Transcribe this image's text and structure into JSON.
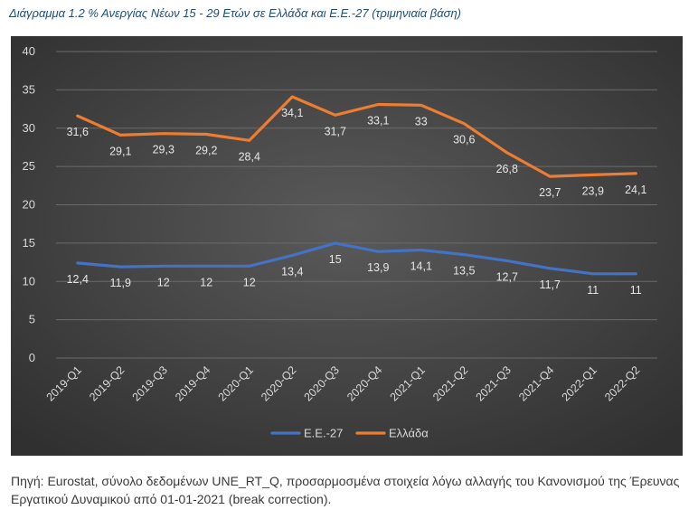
{
  "caption": "Διάγραμμα 1.2 % Ανεργίας Νέων 15 - 29 Ετών σε Ελλάδα και Ε.Ε.-27 (τριμηνιαία βάση)",
  "source_text": "Πηγή: Eurostat, σύνολο δεδομένων UNE_RT_Q, προσαρμοσμένα στοιχεία λόγω αλλαγής του Κανονισμού της Έρευνας Εργατικού Δυναμικού από 01-01-2021 (break correction).",
  "chart_data": {
    "type": "line",
    "categories": [
      "2019-Q1",
      "2019-Q2",
      "2019-Q3",
      "2019-Q4",
      "2020-Q1",
      "2020-Q2",
      "2020-Q3",
      "2020-Q4",
      "2021-Q1",
      "2021-Q2",
      "2021-Q3",
      "2021-Q4",
      "2022-Q1",
      "2022-Q2"
    ],
    "series": [
      {
        "name": "Ε.Ε.-27",
        "color": "#4472c4",
        "values": [
          12.4,
          11.9,
          12,
          12,
          12,
          13.4,
          15,
          13.9,
          14.1,
          13.5,
          12.7,
          11.7,
          11,
          11
        ],
        "labels": [
          "12,4",
          "11,9",
          "12",
          "12",
          "12",
          "13,4",
          "15",
          "13,9",
          "14,1",
          "13,5",
          "12,7",
          "11,7",
          "11",
          "11"
        ]
      },
      {
        "name": "Ελλάδα",
        "color": "#ed7d31",
        "values": [
          31.6,
          29.1,
          29.3,
          29.2,
          28.4,
          34.1,
          31.7,
          33.1,
          33,
          30.6,
          26.8,
          23.7,
          23.9,
          24.1
        ],
        "labels": [
          "31,6",
          "29,1",
          "29,3",
          "29,2",
          "28,4",
          "34,1",
          "31,7",
          "33,1",
          "33",
          "30,6",
          "26,8",
          "23,7",
          "23,9",
          "24,1"
        ]
      }
    ],
    "yticks": [
      0,
      5,
      10,
      15,
      20,
      25,
      30,
      35,
      40
    ],
    "ylim": [
      0,
      40
    ],
    "grid": true,
    "legend_position": "bottom-center",
    "background": "#3f3f3f"
  }
}
